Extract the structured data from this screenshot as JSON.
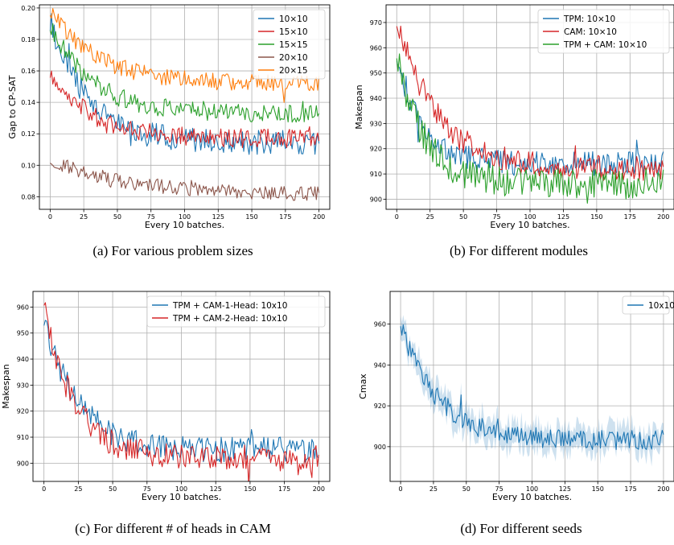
{
  "chart_data": [
    {
      "type": "line",
      "caption": "(a) For various problem sizes",
      "xlabel": "Every 10 batches.",
      "ylabel": "Gap to CP-SAT",
      "xlim": [
        -8,
        208
      ],
      "ylim": [
        0.072,
        0.202
      ],
      "xticks": [
        0,
        25,
        50,
        75,
        100,
        125,
        150,
        175,
        200
      ],
      "yticks": [
        0.08,
        0.1,
        0.12,
        0.14,
        0.16,
        0.18,
        0.2
      ],
      "ytick_labels": [
        "0.08",
        "0.10",
        "0.12",
        "0.14",
        "0.16",
        "0.18",
        "0.20"
      ],
      "grid": true,
      "legend": "top-right",
      "series": [
        {
          "name": "10×10",
          "color": "#1f77b4",
          "start": 0.192,
          "end": 0.114,
          "tau": 28,
          "noise": 0.008
        },
        {
          "name": "15×10",
          "color": "#d62728",
          "start": 0.16,
          "end": 0.117,
          "tau": 30,
          "noise": 0.006
        },
        {
          "name": "15×15",
          "color": "#2ca02c",
          "start": 0.19,
          "end": 0.133,
          "tau": 30,
          "noise": 0.006
        },
        {
          "name": "20×10",
          "color": "#8c564b",
          "start": 0.103,
          "end": 0.081,
          "tau": 60,
          "noise": 0.0045
        },
        {
          "name": "20×15",
          "color": "#ff7f0e",
          "start": 0.198,
          "end": 0.152,
          "tau": 35,
          "noise": 0.0055
        }
      ]
    },
    {
      "type": "line",
      "caption": "(b) For different modules",
      "xlabel": "Every 10 batches.",
      "ylabel": "Makespan",
      "xlim": [
        -8,
        208
      ],
      "ylim": [
        896,
        977
      ],
      "xticks": [
        0,
        25,
        50,
        75,
        100,
        125,
        150,
        175,
        200
      ],
      "yticks": [
        900,
        910,
        920,
        930,
        940,
        950,
        960,
        970
      ],
      "ytick_labels": [
        "900",
        "910",
        "920",
        "930",
        "940",
        "950",
        "960",
        "970"
      ],
      "grid": true,
      "legend": "top-right",
      "series": [
        {
          "name": "TPM: 10×10",
          "color": "#1f77b4",
          "start": 958,
          "end": 914,
          "tau": 18,
          "noise": 5
        },
        {
          "name": "CAM: 10×10",
          "color": "#d62728",
          "start": 972,
          "end": 912,
          "tau": 30,
          "noise": 5
        },
        {
          "name": "TPM + CAM: 10×10",
          "color": "#2ca02c",
          "start": 958,
          "end": 906,
          "tau": 20,
          "noise": 6
        }
      ]
    },
    {
      "type": "line",
      "caption": "(c) For different # of heads in CAM",
      "xlabel": "Every 10 batches.",
      "ylabel": "Makespan",
      "xlim": [
        -8,
        208
      ],
      "ylim": [
        893,
        966
      ],
      "xticks": [
        0,
        25,
        50,
        75,
        100,
        125,
        150,
        175,
        200
      ],
      "yticks": [
        900,
        910,
        920,
        930,
        940,
        950,
        960
      ],
      "ytick_labels": [
        "900",
        "910",
        "920",
        "930",
        "940",
        "950",
        "960"
      ],
      "grid": true,
      "legend": "top-right",
      "series": [
        {
          "name": "TPM + CAM-1-Head: 10x10",
          "color": "#1f77b4",
          "start": 955,
          "end": 905,
          "tau": 25,
          "noise": 5
        },
        {
          "name": "TPM + CAM-2-Head: 10x10",
          "color": "#d62728",
          "start": 960,
          "end": 902,
          "tau": 22,
          "noise": 5
        }
      ]
    },
    {
      "type": "line",
      "caption": "(d) For different seeds",
      "xlabel": "Every 10 batches.",
      "ylabel": "Cmax",
      "xlim": [
        -8,
        208
      ],
      "ylim": [
        883,
        976
      ],
      "xticks": [
        0,
        25,
        50,
        75,
        100,
        125,
        150,
        175,
        200
      ],
      "yticks": [
        900,
        920,
        940,
        960
      ],
      "ytick_labels": [
        "900",
        "920",
        "940",
        "960"
      ],
      "grid": true,
      "legend": "top-right",
      "band": true,
      "series": [
        {
          "name": "10x10",
          "color": "#1f77b4",
          "start": 960,
          "end": 903,
          "tau": 28,
          "noise": 5
        }
      ]
    }
  ]
}
